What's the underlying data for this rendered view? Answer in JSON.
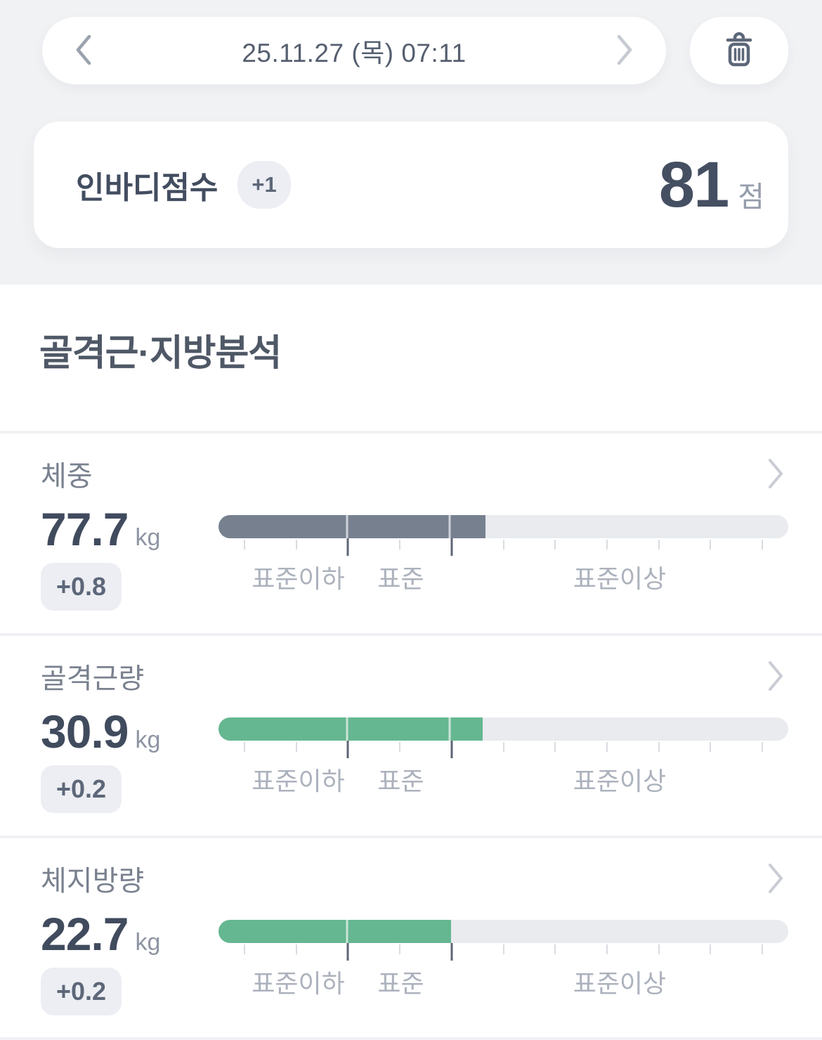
{
  "nav": {
    "date_label": "25.11.27 (목) 07:11"
  },
  "score_card": {
    "title": "인바디점수",
    "change_badge": "+1",
    "score": "81",
    "score_unit": "점"
  },
  "section": {
    "title": "골격근·지방분석"
  },
  "zone_labels": [
    "표준이하",
    "표준",
    "표준이상"
  ],
  "bar_scale": {
    "tick_count": 11,
    "major_tick_indices": [
      2,
      4
    ],
    "boundaries_pct": [
      22.6,
      40.6
    ],
    "zone_label_pos_pct": [
      14,
      32,
      70.4
    ]
  },
  "metrics": [
    {
      "label": "체중",
      "value": "77.7",
      "unit": "kg",
      "change": "+0.8",
      "bar": {
        "fill_pct": 46.9,
        "fill_color": "#76808F"
      }
    },
    {
      "label": "골격근량",
      "value": "30.9",
      "unit": "kg",
      "change": "+0.2",
      "bar": {
        "fill_pct": 46.4,
        "fill_color": "#65B791"
      }
    },
    {
      "label": "체지방량",
      "value": "22.7",
      "unit": "kg",
      "change": "+0.2",
      "bar": {
        "fill_pct": 40.8,
        "fill_color": "#65B791"
      }
    }
  ],
  "colors": {
    "page_top_bg": "#f1f2f4",
    "card_bg": "#ffffff",
    "value_text": "#414b5e",
    "label_text": "#79818f",
    "unit_text": "#8e95a3",
    "badge_bg": "#eceef3",
    "badge_text": "#5d6779",
    "bar_track": "#e9ebee",
    "bar_fill_gray": "#76808F",
    "bar_fill_green": "#65B791",
    "zone_label_text": "#acb2bd",
    "major_tick": "#5d6575",
    "minor_tick": "#d9dce1"
  }
}
